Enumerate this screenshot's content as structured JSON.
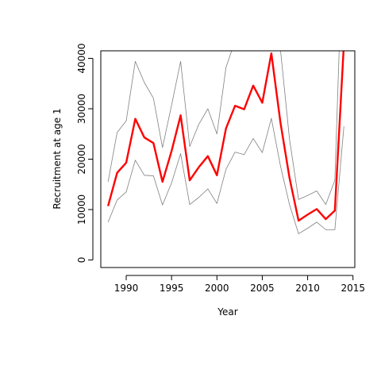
{
  "chart_data": {
    "type": "line",
    "title": "",
    "xlabel": "Year",
    "ylabel": "Recruitment at age 1",
    "xlim": [
      1987.2,
      2015.2
    ],
    "ylim": [
      -1500,
      41500
    ],
    "x_ticks": [
      1990,
      1995,
      2000,
      2005,
      2010,
      2015
    ],
    "y_ticks": [
      0,
      10000,
      20000,
      30000,
      40000
    ],
    "x_tick_labels": [
      "1990",
      "1995",
      "2000",
      "2005",
      "2010",
      "2015"
    ],
    "y_tick_labels": [
      "0",
      "10000",
      "20000",
      "30000",
      "40000"
    ],
    "grid": false,
    "legend": "none",
    "x": [
      1988,
      1989,
      1990,
      1991,
      1992,
      1993,
      1994,
      1995,
      1996,
      1997,
      1998,
      1999,
      2000,
      2001,
      2002,
      2003,
      2004,
      2005,
      2006,
      2007,
      2008,
      2009,
      2010,
      2011,
      2012,
      2013,
      2014
    ],
    "series": [
      {
        "role": "estimate",
        "color": "#ff0000",
        "values": [
          10700,
          17300,
          19300,
          28000,
          24300,
          23200,
          15500,
          21600,
          28700,
          15800,
          18400,
          20600,
          16800,
          26100,
          30600,
          29900,
          34600,
          31200,
          41000,
          27300,
          16300,
          7800,
          9000,
          10100,
          8100,
          9800,
          43000
        ]
      },
      {
        "role": "upper",
        "color": "#808080",
        "values": [
          15500,
          25300,
          27600,
          39400,
          35200,
          32100,
          22300,
          30700,
          39400,
          22500,
          26900,
          30000,
          25000,
          38200,
          43500,
          43500,
          50000,
          44000,
          56000,
          41800,
          24000,
          12000,
          12800,
          13700,
          11000,
          15800,
          70000
        ]
      },
      {
        "role": "lower",
        "color": "#808080",
        "values": [
          7500,
          11900,
          13500,
          19800,
          16800,
          16700,
          10900,
          15300,
          21100,
          11000,
          12400,
          14100,
          11200,
          18000,
          21400,
          20900,
          24100,
          21300,
          28100,
          18700,
          11000,
          5200,
          6300,
          7500,
          6000,
          6000,
          26500
        ]
      }
    ]
  }
}
